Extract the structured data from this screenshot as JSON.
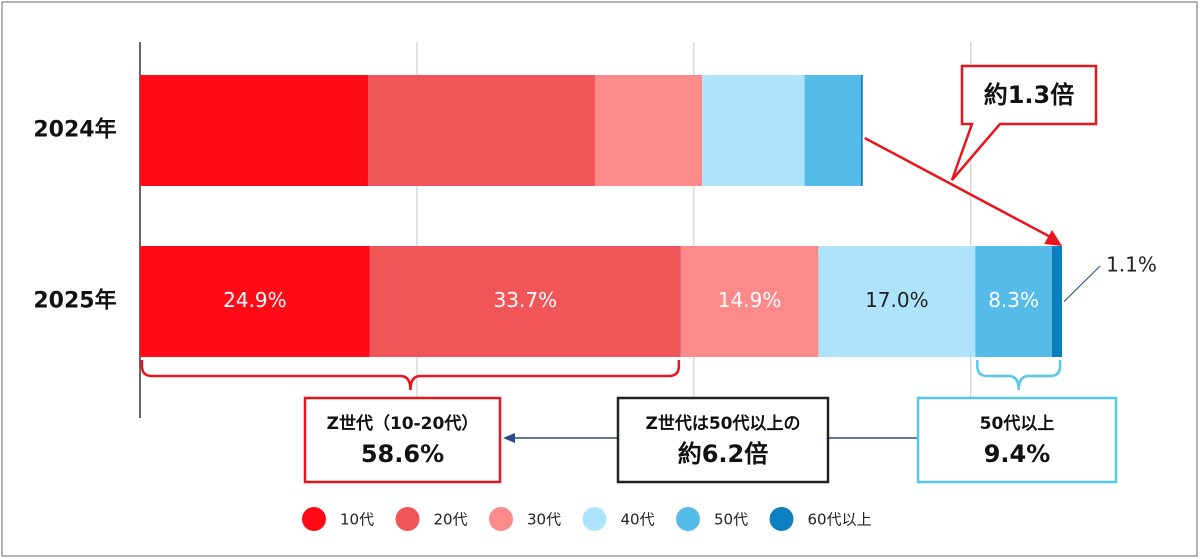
{
  "chart_data": {
    "type": "stacked-barh",
    "categories": [
      "2024年",
      "2025年"
    ],
    "series": [
      {
        "name": "10代",
        "color": "#ff0a16",
        "values": [
          24.7,
          24.9
        ],
        "value_labels": [
          null,
          "24.9%"
        ]
      },
      {
        "name": "20代",
        "color": "#f05558",
        "values": [
          24.6,
          33.7
        ],
        "value_labels": [
          null,
          "33.7%"
        ]
      },
      {
        "name": "30代",
        "color": "#fc8a8b",
        "values": [
          11.6,
          14.9
        ],
        "value_labels": [
          null,
          "14.9%"
        ]
      },
      {
        "name": "40代",
        "color": "#aee4fb",
        "values": [
          11.1,
          17.0
        ],
        "value_labels": [
          null,
          "17.0%"
        ]
      },
      {
        "name": "50代",
        "color": "#55bce9",
        "values": [
          6.1,
          8.3
        ],
        "value_labels": [
          null,
          "8.3%"
        ]
      },
      {
        "name": "60代以上",
        "color": "#0b7fc0",
        "values": [
          0.2,
          1.1
        ],
        "value_labels": [
          null,
          "1.1%"
        ]
      }
    ],
    "xlim": [
      0,
      100
    ],
    "xticks": [
      30,
      60,
      90
    ],
    "grid": true,
    "annotations": {
      "growth": "約1.3倍",
      "z_generation": {
        "title": "Z世代（10-20代）",
        "value": "58.6%"
      },
      "comparison": {
        "title": "Z世代は50代以上の",
        "value": "約6.2倍"
      },
      "over_50": {
        "title": "50代以上",
        "value": "9.4%"
      }
    }
  }
}
